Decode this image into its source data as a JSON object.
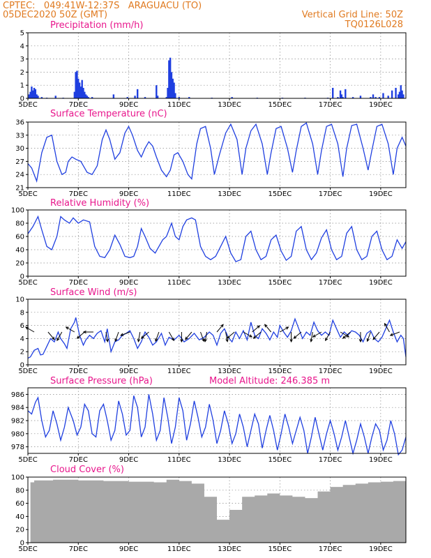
{
  "header": {
    "line1": "CPTEC:   049:41W-12:37S   ARAGUACU (TO)",
    "line2": "05DEC2020 50Z (GMT)",
    "grid_note": "Vertical Grid Line: 50Z",
    "model_code": "TQ0126L028",
    "title_color": "#e07a20",
    "panel_title_color": "#e8168c",
    "series_color": "#1f3fe0",
    "cloud_color": "#a9a9a9"
  },
  "x_axis": {
    "tick_labels": [
      "5DEC",
      "7DEC",
      "9DEC",
      "11DEC",
      "13DEC",
      "15DEC",
      "17DEC",
      "19DEC"
    ],
    "tick_days": [
      5,
      7,
      9,
      11,
      13,
      15,
      17,
      19
    ],
    "range_days": [
      5,
      20
    ]
  },
  "chart_data": [
    {
      "type": "bar",
      "title": "Precipitation (mm/h)",
      "ylim": [
        0,
        5
      ],
      "yticks": [
        "0",
        "1",
        "2",
        "3",
        "4",
        "5"
      ],
      "grid": true,
      "x_days": [
        5.05,
        5.1,
        5.15,
        5.2,
        5.25,
        5.3,
        5.35,
        5.4,
        5.55,
        5.75,
        6.1,
        6.4,
        6.85,
        6.9,
        6.95,
        7.0,
        7.05,
        7.1,
        7.15,
        7.2,
        7.25,
        7.3,
        7.35,
        7.4,
        7.55,
        8.4,
        8.95,
        9.25,
        9.35,
        9.65,
        10.1,
        10.15,
        10.5,
        10.55,
        10.6,
        10.65,
        10.7,
        10.75,
        10.8,
        10.85,
        11.0,
        11.4,
        12.3,
        13.1,
        14.1,
        15.1,
        16.0,
        16.9,
        17.1,
        17.3,
        17.4,
        17.45,
        17.5,
        17.6,
        17.9,
        18.2,
        18.6,
        18.7,
        18.8,
        18.95,
        19.1,
        19.3,
        19.45,
        19.6,
        19.7,
        19.75,
        19.8,
        19.85,
        19.9
      ],
      "values": [
        0.3,
        0.5,
        0.9,
        0.6,
        0.8,
        0.7,
        0.3,
        0.2,
        0.1,
        0.05,
        0.2,
        0.05,
        0.5,
        2.0,
        2.1,
        1.5,
        1.2,
        0.9,
        1.4,
        0.8,
        0.5,
        0.3,
        0.2,
        0.1,
        0.1,
        0.3,
        0.1,
        0.2,
        0.7,
        0.1,
        1.0,
        0.2,
        0.1,
        0.8,
        2.9,
        3.1,
        2.0,
        1.5,
        1.2,
        0.4,
        0.1,
        0.1,
        0.05,
        0.1,
        0.05,
        0.05,
        0.05,
        0.05,
        0.8,
        0.1,
        0.6,
        0.3,
        0.1,
        0.7,
        0.1,
        0.2,
        0.1,
        0.3,
        0.1,
        0.1,
        0.4,
        0.2,
        0.6,
        0.8,
        0.3,
        0.5,
        1.0,
        0.6,
        0.3
      ]
    },
    {
      "type": "line",
      "title": "Surface Temperature (nC)",
      "ylim": [
        21,
        36
      ],
      "yticks": [
        "21",
        "24",
        "27",
        "30",
        "33",
        "36"
      ],
      "grid": true,
      "x_days": [
        5.0,
        5.15,
        5.35,
        5.55,
        5.75,
        5.95,
        6.15,
        6.35,
        6.5,
        6.6,
        6.75,
        6.9,
        7.1,
        7.2,
        7.35,
        7.55,
        7.75,
        7.95,
        8.1,
        8.25,
        8.45,
        8.65,
        8.85,
        9.0,
        9.15,
        9.35,
        9.5,
        9.65,
        9.8,
        9.95,
        10.1,
        10.3,
        10.5,
        10.65,
        10.8,
        10.95,
        11.15,
        11.35,
        11.5,
        11.7,
        11.85,
        12.05,
        12.25,
        12.4,
        12.6,
        12.85,
        13.05,
        13.3,
        13.5,
        13.65,
        13.85,
        14.05,
        14.3,
        14.5,
        14.65,
        14.85,
        15.05,
        15.3,
        15.5,
        15.65,
        15.85,
        16.05,
        16.3,
        16.5,
        16.65,
        16.85,
        17.05,
        17.3,
        17.5,
        17.65,
        17.85,
        18.05,
        18.3,
        18.5,
        18.65,
        18.85,
        19.05,
        19.3,
        19.5,
        19.65,
        19.85,
        20.0
      ],
      "values": [
        26.5,
        25.5,
        22.5,
        29.0,
        32.5,
        33.0,
        27.0,
        24.0,
        24.5,
        27.0,
        28.0,
        27.5,
        27.0,
        26.0,
        24.5,
        24.0,
        26.0,
        32.0,
        34.2,
        32.0,
        27.5,
        29.0,
        33.5,
        35.0,
        33.0,
        29.5,
        28.0,
        30.0,
        31.5,
        30.5,
        28.0,
        25.0,
        23.5,
        25.0,
        28.5,
        29.0,
        27.0,
        24.0,
        23.0,
        31.0,
        34.5,
        35.0,
        30.0,
        24.0,
        28.5,
        33.5,
        35.5,
        32.0,
        24.0,
        30.0,
        34.0,
        35.5,
        31.0,
        24.0,
        29.0,
        34.5,
        35.0,
        30.0,
        24.5,
        29.5,
        35.0,
        35.8,
        31.0,
        24.0,
        29.5,
        35.0,
        35.5,
        31.0,
        23.5,
        30.0,
        35.2,
        35.5,
        30.0,
        25.0,
        29.5,
        35.0,
        35.5,
        31.0,
        24.0,
        30.0,
        32.5,
        30.5
      ]
    },
    {
      "type": "line",
      "title": "Relative Humidity (%)",
      "ylim": [
        0,
        100
      ],
      "yticks": [
        "0",
        "20",
        "40",
        "60",
        "80",
        "100"
      ],
      "grid": true,
      "x_days": [
        5.0,
        5.2,
        5.4,
        5.55,
        5.75,
        5.95,
        6.15,
        6.3,
        6.45,
        6.65,
        6.8,
        7.0,
        7.2,
        7.45,
        7.65,
        7.85,
        8.05,
        8.25,
        8.45,
        8.65,
        8.85,
        9.05,
        9.2,
        9.35,
        9.5,
        9.65,
        9.85,
        10.05,
        10.2,
        10.35,
        10.5,
        10.7,
        10.85,
        11.0,
        11.15,
        11.3,
        11.5,
        11.65,
        11.85,
        12.05,
        12.25,
        12.45,
        12.65,
        12.85,
        13.05,
        13.25,
        13.45,
        13.65,
        13.85,
        14.05,
        14.25,
        14.45,
        14.65,
        14.85,
        15.05,
        15.25,
        15.45,
        15.65,
        15.85,
        16.05,
        16.25,
        16.45,
        16.65,
        16.85,
        17.05,
        17.25,
        17.45,
        17.65,
        17.85,
        18.05,
        18.25,
        18.45,
        18.65,
        18.85,
        19.05,
        19.25,
        19.45,
        19.65,
        19.85,
        20.0
      ],
      "values": [
        64,
        75,
        90,
        70,
        45,
        40,
        60,
        90,
        85,
        80,
        88,
        80,
        85,
        82,
        45,
        30,
        28,
        40,
        62,
        48,
        30,
        28,
        30,
        45,
        72,
        60,
        42,
        35,
        45,
        55,
        60,
        80,
        60,
        55,
        75,
        85,
        88,
        85,
        45,
        30,
        25,
        30,
        45,
        60,
        35,
        22,
        25,
        60,
        68,
        40,
        25,
        30,
        55,
        62,
        38,
        24,
        30,
        68,
        75,
        40,
        25,
        35,
        58,
        70,
        40,
        25,
        30,
        65,
        75,
        40,
        25,
        30,
        60,
        68,
        40,
        25,
        30,
        55,
        42,
        52
      ]
    },
    {
      "type": "line",
      "title": "Surface Wind (m/s)",
      "ylim": [
        0,
        10
      ],
      "yticks": [
        "0",
        "2",
        "4",
        "6",
        "8",
        "10"
      ],
      "grid": true,
      "x_days": [
        5.0,
        5.1,
        5.25,
        5.4,
        5.5,
        5.6,
        5.75,
        5.9,
        6.05,
        6.2,
        6.3,
        6.45,
        6.55,
        6.7,
        6.85,
        6.9,
        7.05,
        7.2,
        7.3,
        7.45,
        7.6,
        7.75,
        7.9,
        8.05,
        8.15,
        8.3,
        8.45,
        8.6,
        8.75,
        8.9,
        9.05,
        9.2,
        9.35,
        9.5,
        9.65,
        9.8,
        9.95,
        10.1,
        10.3,
        10.45,
        10.6,
        10.8,
        11.0,
        11.2,
        11.4,
        11.6,
        11.8,
        12.0,
        12.2,
        12.35,
        12.5,
        12.65,
        12.8,
        12.95,
        13.1,
        13.25,
        13.4,
        13.55,
        13.7,
        13.85,
        14.0,
        14.15,
        14.3,
        14.45,
        14.6,
        14.75,
        14.9,
        15.0,
        15.15,
        15.3,
        15.45,
        15.6,
        15.75,
        15.9,
        16.05,
        16.2,
        16.35,
        16.5,
        16.65,
        16.8,
        16.95,
        17.1,
        17.25,
        17.4,
        17.55,
        17.7,
        17.85,
        18.0,
        18.15,
        18.3,
        18.45,
        18.6,
        18.75,
        18.9,
        19.05,
        19.2,
        19.35,
        19.5,
        19.65,
        19.8,
        19.9,
        20.0
      ],
      "values": [
        1.0,
        1.2,
        2.2,
        2.5,
        1.5,
        1.6,
        2.8,
        4.0,
        3.5,
        5.0,
        4.0,
        3.2,
        2.5,
        5.5,
        6.5,
        7.2,
        4.5,
        3.0,
        3.8,
        4.5,
        4.0,
        4.8,
        5.2,
        3.5,
        5.5,
        2.0,
        3.5,
        3.8,
        4.5,
        4.8,
        5.2,
        4.0,
        2.5,
        3.5,
        5.0,
        4.2,
        3.0,
        3.5,
        4.8,
        3.0,
        4.2,
        3.8,
        4.5,
        3.5,
        4.0,
        4.8,
        3.8,
        4.2,
        5.0,
        4.5,
        3.0,
        4.8,
        5.5,
        4.2,
        3.5,
        5.0,
        4.0,
        5.2,
        3.8,
        6.5,
        4.5,
        4.0,
        5.5,
        4.8,
        3.8,
        5.0,
        4.2,
        6.0,
        5.0,
        4.2,
        5.2,
        7.0,
        5.5,
        4.0,
        5.0,
        4.5,
        6.5,
        5.2,
        4.5,
        5.0,
        4.5,
        6.8,
        5.5,
        4.2,
        5.0,
        4.5,
        5.2,
        5.0,
        4.5,
        3.5,
        4.8,
        5.2,
        4.0,
        3.5,
        4.2,
        5.5,
        6.8,
        5.0,
        3.5,
        4.5,
        4.0,
        1.2
      ],
      "arrows_x_days": [
        5.25,
        5.8,
        6.35,
        6.85,
        7.25,
        7.6,
        8.1,
        8.6,
        9.05,
        9.45,
        9.8,
        10.2,
        10.6,
        11.1,
        11.5,
        11.85,
        12.1,
        12.5,
        12.85,
        13.2,
        13.55,
        13.9,
        14.25,
        14.65,
        15.0,
        15.45,
        15.85,
        16.3,
        16.65,
        17.0,
        17.4,
        17.8,
        18.2,
        18.6,
        18.95,
        19.35,
        19.75
      ],
      "arrows_dir_deg": [
        300,
        140,
        210,
        300,
        230,
        270,
        170,
        200,
        250,
        190,
        230,
        200,
        150,
        180,
        220,
        160,
        190,
        40,
        170,
        230,
        120,
        50,
        230,
        320,
        60,
        180,
        230,
        190,
        240,
        210,
        120,
        230,
        180,
        200,
        220,
        330,
        250
      ]
    },
    {
      "type": "line",
      "title": "Surface Pressure (hPa)",
      "subtitle": "Model Altitude: 246.385 m",
      "ylim": [
        977,
        987
      ],
      "yticks": [
        "978",
        "980",
        "982",
        "984",
        "986"
      ],
      "grid": true,
      "x_days": [
        5.0,
        5.15,
        5.3,
        5.4,
        5.55,
        5.7,
        5.85,
        6.0,
        6.15,
        6.3,
        6.45,
        6.6,
        6.8,
        6.95,
        7.1,
        7.25,
        7.4,
        7.55,
        7.7,
        7.85,
        8.0,
        8.15,
        8.3,
        8.45,
        8.6,
        8.75,
        8.9,
        9.05,
        9.2,
        9.35,
        9.5,
        9.65,
        9.8,
        9.95,
        10.1,
        10.25,
        10.4,
        10.55,
        10.7,
        10.85,
        11.0,
        11.15,
        11.3,
        11.45,
        11.6,
        11.75,
        11.9,
        12.05,
        12.2,
        12.35,
        12.5,
        12.65,
        12.8,
        12.95,
        13.1,
        13.25,
        13.4,
        13.55,
        13.7,
        13.85,
        14.0,
        14.15,
        14.3,
        14.45,
        14.6,
        14.75,
        14.9,
        15.05,
        15.2,
        15.35,
        15.5,
        15.65,
        15.8,
        15.95,
        16.1,
        16.25,
        16.4,
        16.55,
        16.7,
        16.85,
        17.0,
        17.15,
        17.3,
        17.45,
        17.6,
        17.75,
        17.9,
        18.05,
        18.2,
        18.35,
        18.5,
        18.65,
        18.8,
        18.95,
        19.1,
        19.25,
        19.4,
        19.55,
        19.7,
        19.85,
        20.0
      ],
      "values": [
        983.5,
        983.0,
        984.8,
        985.5,
        982.0,
        979.5,
        980.5,
        983.5,
        981.5,
        979.0,
        981.0,
        984.0,
        982.0,
        979.8,
        981.0,
        984.5,
        983.5,
        980.0,
        979.5,
        983.5,
        984.5,
        982.0,
        979.0,
        980.5,
        985.0,
        983.0,
        979.8,
        980.5,
        985.8,
        984.0,
        979.5,
        981.0,
        986.0,
        983.0,
        979.0,
        980.5,
        985.5,
        982.5,
        978.5,
        981.0,
        985.5,
        983.5,
        979.0,
        981.5,
        985.0,
        982.5,
        979.5,
        981.0,
        984.5,
        982.0,
        978.5,
        980.5,
        983.5,
        981.5,
        978.5,
        980.0,
        983.0,
        981.0,
        978.0,
        980.5,
        983.0,
        981.5,
        977.8,
        980.5,
        982.8,
        980.5,
        977.5,
        980.0,
        983.0,
        981.0,
        978.5,
        980.5,
        982.5,
        980.5,
        977.0,
        979.5,
        982.5,
        980.0,
        977.5,
        980.0,
        982.0,
        980.0,
        977.5,
        979.5,
        982.0,
        979.5,
        977.0,
        979.0,
        981.5,
        979.5,
        977.0,
        979.5,
        981.5,
        980.5,
        977.5,
        979.0,
        982.0,
        980.0,
        976.8,
        977.5,
        979.5
      ]
    },
    {
      "type": "bar",
      "title": "Cloud Cover (%)",
      "ylim": [
        0,
        100
      ],
      "yticks": [
        "0",
        "20",
        "40",
        "60",
        "80",
        "100"
      ],
      "grid": true,
      "x_days": [
        5.25,
        6.0,
        7.0,
        8.0,
        9.0,
        10.0,
        10.5,
        11.0,
        11.5,
        12.0,
        12.5,
        13.0,
        13.5,
        14.0,
        14.5,
        15.0,
        15.5,
        16.0,
        16.5,
        17.0,
        17.5,
        18.0,
        18.5,
        19.0,
        19.5,
        20.0
      ],
      "values": [
        92,
        95,
        96,
        95,
        94,
        93,
        92,
        96,
        94,
        90,
        70,
        35,
        50,
        70,
        72,
        75,
        72,
        70,
        68,
        78,
        85,
        88,
        90,
        92,
        93,
        94
      ]
    }
  ]
}
